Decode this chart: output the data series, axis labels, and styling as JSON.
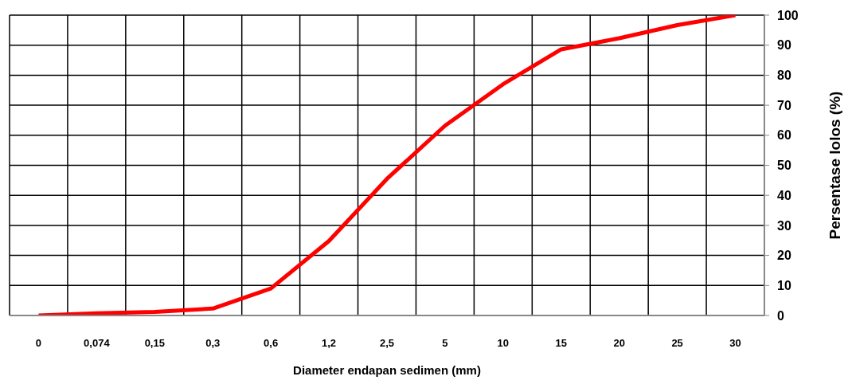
{
  "chart_data": {
    "type": "line",
    "xlabel": "Diameter  endapan  sedimen (mm)",
    "ylabel": "Persentase lolos (%)",
    "categories": [
      "0",
      "0,074",
      "0,15",
      "0,3",
      "0,6",
      "1,2",
      "2,5",
      "5",
      "10",
      "15",
      "20",
      "25",
      "30"
    ],
    "series": [
      {
        "color": "#ff0000",
        "values": [
          0,
          0.7,
          1.2,
          2.3,
          9,
          24.8,
          45.5,
          63.2,
          77,
          88.6,
          92.3,
          96.7,
          100
        ]
      }
    ],
    "ylim": [
      0,
      100
    ],
    "yticks": [
      0,
      10,
      20,
      30,
      40,
      50,
      60,
      70,
      80,
      90,
      100
    ],
    "grid": true,
    "marker": "none",
    "line_style": "solid"
  }
}
